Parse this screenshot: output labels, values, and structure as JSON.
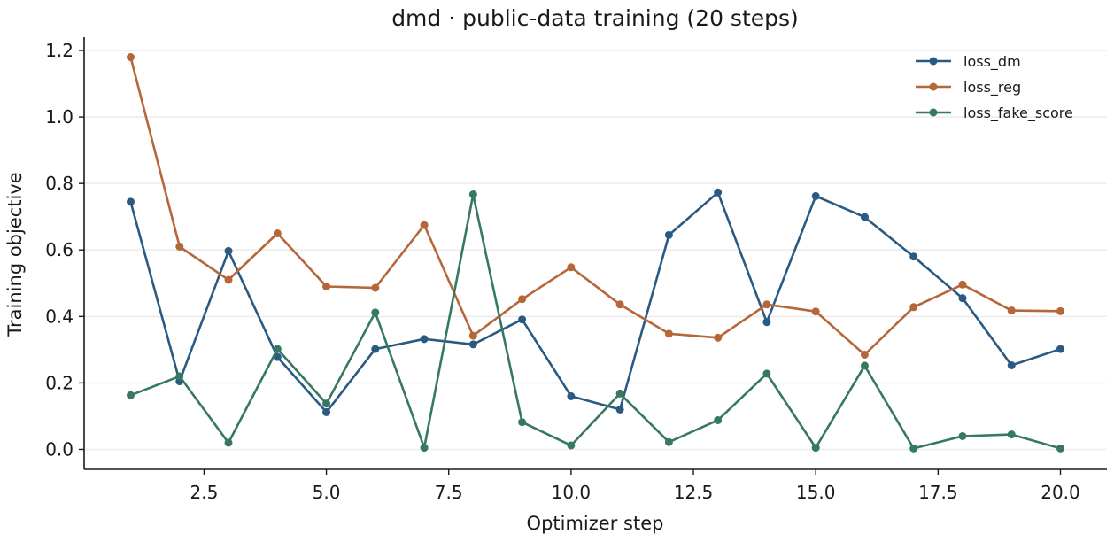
{
  "chart_data": {
    "type": "line",
    "title": "dmd · public-data training (20 steps)",
    "xlabel": "Optimizer step",
    "ylabel": "Training objective",
    "xlim": [
      0.05,
      20.95
    ],
    "ylim": [
      -0.06,
      1.24
    ],
    "xticks": [
      2.5,
      5.0,
      7.5,
      10.0,
      12.5,
      15.0,
      17.5,
      20.0
    ],
    "xtick_labels": [
      "2.5",
      "5.0",
      "7.5",
      "10.0",
      "12.5",
      "15.0",
      "17.5",
      "20.0"
    ],
    "yticks": [
      0.0,
      0.2,
      0.4,
      0.6,
      0.8,
      1.0,
      1.2
    ],
    "ytick_labels": [
      "0.0",
      "0.2",
      "0.4",
      "0.6",
      "0.8",
      "1.0",
      "1.2"
    ],
    "grid": "horizontal",
    "legend_position": "top-right",
    "x": [
      1,
      2,
      3,
      4,
      5,
      6,
      7,
      8,
      9,
      10,
      11,
      12,
      13,
      14,
      15,
      16,
      17,
      18,
      19,
      20
    ],
    "series": [
      {
        "name": "loss_dm",
        "color": "#2a5a82",
        "values": [
          0.745,
          0.205,
          0.597,
          0.278,
          0.112,
          0.302,
          0.332,
          0.316,
          0.391,
          0.16,
          0.12,
          0.645,
          0.773,
          0.383,
          0.762,
          0.699,
          0.58,
          0.455,
          0.253,
          0.302
        ]
      },
      {
        "name": "loss_reg",
        "color": "#b5673a",
        "values": [
          1.18,
          0.61,
          0.51,
          0.65,
          0.49,
          0.486,
          0.675,
          0.342,
          0.452,
          0.548,
          0.436,
          0.348,
          0.336,
          0.436,
          0.415,
          0.285,
          0.428,
          0.496,
          0.418,
          0.416
        ]
      },
      {
        "name": "loss_fake_score",
        "color": "#367860",
        "values": [
          0.163,
          0.22,
          0.02,
          0.302,
          0.138,
          0.412,
          0.005,
          0.767,
          0.082,
          0.012,
          0.168,
          0.022,
          0.088,
          0.228,
          0.005,
          0.252,
          0.003,
          0.04,
          0.045,
          0.003
        ]
      }
    ]
  }
}
